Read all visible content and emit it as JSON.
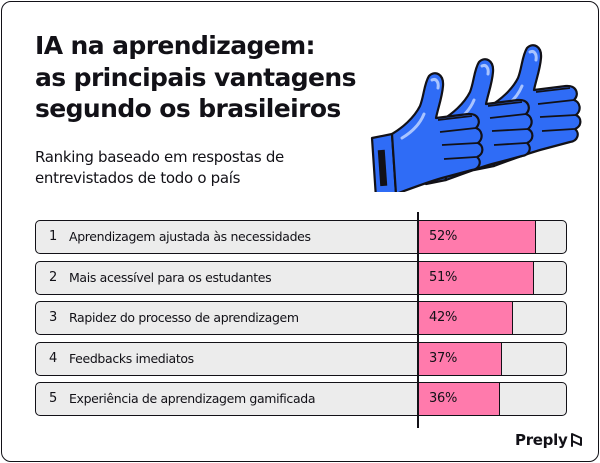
{
  "title_lines": [
    "IA na aprendizagem:",
    "as principais vantagens",
    "segundo os brasileiros"
  ],
  "subtitle_lines": [
    "Ranking baseado em respostas de",
    "entrevistados de todo o país"
  ],
  "chart_data": {
    "type": "bar",
    "orientation": "horizontal",
    "title": "IA na aprendizagem: as principais vantagens segundo os brasileiros",
    "subtitle": "Ranking baseado em respostas de entrevistados de todo o país",
    "unit": "%",
    "xlim": [
      0,
      100
    ],
    "categories": [
      "Aprendizagem ajustada às necessidades",
      "Mais acessível para os estudantes",
      "Rapidez do processo de aprendizagem",
      "Feedbacks imediatos",
      "Experiência de aprendizagem gamificada"
    ],
    "ranks": [
      "1",
      "2",
      "3",
      "4",
      "5"
    ],
    "values": [
      52,
      51,
      42,
      37,
      36
    ],
    "value_labels": [
      "52%",
      "51%",
      "42%",
      "37%",
      "36%"
    ]
  },
  "brand": {
    "name": "Preply"
  },
  "colors": {
    "bar": "#ff7aac",
    "track": "#ececec",
    "thumb_blue": "#2f6cf6",
    "thumb_light": "#a9c4ff",
    "ink": "#121117"
  },
  "icons": {
    "illustration": "thumbs-up-icon",
    "logo": "preply-logo-icon"
  }
}
